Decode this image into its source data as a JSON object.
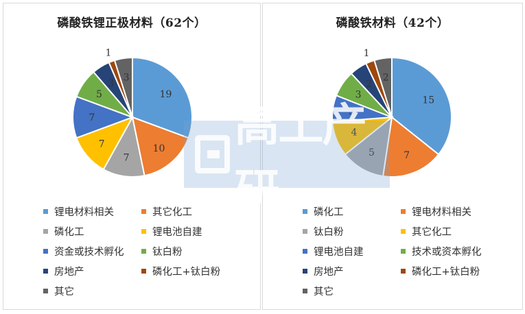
{
  "colors": [
    "#5B9BD5",
    "#ED7D31",
    "#A5A5A5",
    "#FFC000",
    "#4472C4",
    "#70AD47",
    "#264478",
    "#9E480E",
    "#636363"
  ],
  "watermark": {
    "text": "高工产研"
  },
  "chart_data": [
    {
      "type": "pie",
      "title": "磷酸铁锂正极材料（62个）",
      "categories": [
        "锂电材料相关",
        "其它化工",
        "磷化工",
        "锂电池自建",
        "资金或技术孵化",
        "钛白粉",
        "房地产",
        "磷化工+钛白粉",
        "其它"
      ],
      "values": [
        19,
        10,
        7,
        7,
        7,
        5,
        3,
        1,
        3
      ],
      "legend": "bottom"
    },
    {
      "type": "pie",
      "title": "磷酸铁材料（42个）",
      "categories": [
        "磷化工",
        "锂电材料相关",
        "钛白粉",
        "其它化工",
        "锂电池自建",
        "技术或资本孵化",
        "房地产",
        "磷化工+钛白粉",
        "其它"
      ],
      "values": [
        15,
        7,
        5,
        4,
        3,
        3,
        2,
        1,
        2
      ],
      "legend": "bottom"
    }
  ]
}
